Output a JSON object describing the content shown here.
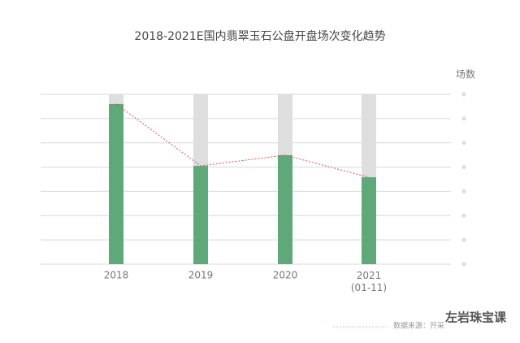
{
  "chart_data": {
    "type": "bar",
    "title": "2018-2021E国内翡翠玉石公盘开盘场次变化趋势",
    "y_label": "场数",
    "categories": [
      "2018",
      "2019",
      "2020",
      "2021\n(01-11)"
    ],
    "values": [
      6.6,
      4.05,
      4.49,
      3.58
    ],
    "color": "#5fa87a",
    "background_color": "#dedede",
    "line_color": "#d9534f",
    "ylim": [
      0,
      7
    ],
    "yticks": [
      0,
      1,
      2,
      3,
      4,
      5,
      6,
      7
    ],
    "grid": true,
    "source": "数据来源：开采",
    "watermark": "左岩珠宝课"
  }
}
